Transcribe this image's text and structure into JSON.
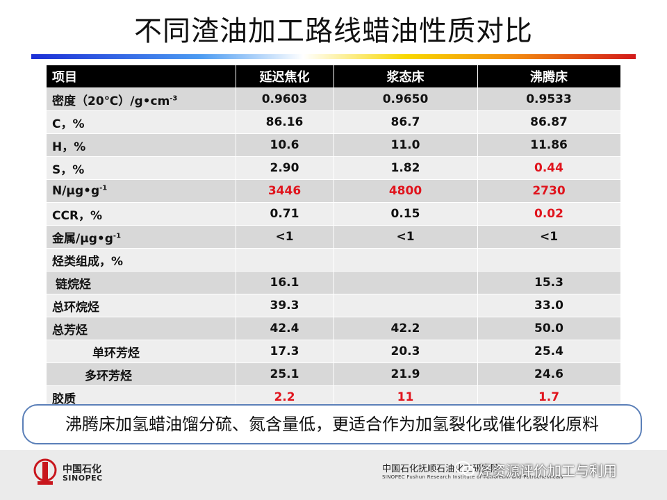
{
  "title": "不同渣油加工路线蜡油性质对比",
  "table": {
    "headers": [
      "项目",
      "延迟焦化",
      "浆态床",
      "沸腾床"
    ],
    "rows": [
      {
        "label": "密度（20℃）/g•cm",
        "sup": "-3",
        "values": [
          "0.9603",
          "0.9650",
          "0.9533"
        ],
        "red": [
          false,
          false,
          false
        ]
      },
      {
        "label": "C，%",
        "sup": "",
        "values": [
          "86.16",
          "86.7",
          "86.87"
        ],
        "red": [
          false,
          false,
          false
        ]
      },
      {
        "label": "H，%",
        "sup": "",
        "values": [
          "10.6",
          "11.0",
          "11.86"
        ],
        "red": [
          false,
          false,
          false
        ]
      },
      {
        "label": "S，%",
        "sup": "",
        "values": [
          "2.90",
          "1.82",
          "0.44"
        ],
        "red": [
          false,
          false,
          true
        ]
      },
      {
        "label": "N/μg•g",
        "sup": "-1",
        "values": [
          "3446",
          "4800",
          "2730"
        ],
        "red": [
          true,
          true,
          true
        ]
      },
      {
        "label": "CCR，%",
        "sup": "",
        "values": [
          "0.71",
          "0.15",
          "0.02"
        ],
        "red": [
          false,
          false,
          true
        ]
      },
      {
        "label": "金属/μg•g",
        "sup": "-1",
        "values": [
          "<1",
          "<1",
          "<1"
        ],
        "red": [
          false,
          false,
          false
        ]
      },
      {
        "label": "烃类组成，%",
        "sup": "",
        "values": [
          "",
          "",
          ""
        ],
        "red": [
          false,
          false,
          false
        ]
      },
      {
        "label": "链烷烃",
        "sup": "",
        "values": [
          "16.1",
          "",
          "15.3"
        ],
        "red": [
          false,
          false,
          false
        ]
      },
      {
        "label": "总环烷烃",
        "sup": "",
        "values": [
          "39.3",
          "",
          "33.0"
        ],
        "red": [
          false,
          false,
          false
        ]
      },
      {
        "label": "总芳烃",
        "sup": "",
        "values": [
          "42.4",
          "42.2",
          "50.0"
        ],
        "red": [
          false,
          false,
          false
        ]
      },
      {
        "label": "单环芳烃",
        "sup": "",
        "values": [
          "17.3",
          "20.3",
          "25.4"
        ],
        "red": [
          false,
          false,
          false
        ]
      },
      {
        "label": "多环芳烃",
        "sup": "",
        "values": [
          "25.1",
          "21.9",
          "24.6"
        ],
        "red": [
          false,
          false,
          false
        ]
      },
      {
        "label": "胶质",
        "sup": "",
        "values": [
          "2.2",
          "11",
          "1.7"
        ],
        "red": [
          true,
          true,
          true
        ]
      }
    ]
  },
  "summary": "沸腾床加氢蜡油馏分硫、氮含量低，更适合作为加氢裂化或催化裂化原料",
  "footer": {
    "logo_cn": "中国石化",
    "logo_en": "SINOPEC",
    "institute_cn": "中国石化抚顺石油化工研究院",
    "institute_en": "SINOPEC  Fushun Research Institute of Petroleum and Petrochemicals",
    "watermark": "烃资源评价加工与利用"
  }
}
